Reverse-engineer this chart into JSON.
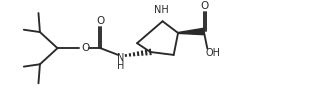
{
  "bg_color": "#ffffff",
  "line_color": "#2a2a2a",
  "line_width": 1.35,
  "figsize": [
    3.14,
    0.95
  ],
  "dpi": 100,
  "xlim": [
    0,
    10.5
  ],
  "ylim": [
    0,
    3.2
  ]
}
